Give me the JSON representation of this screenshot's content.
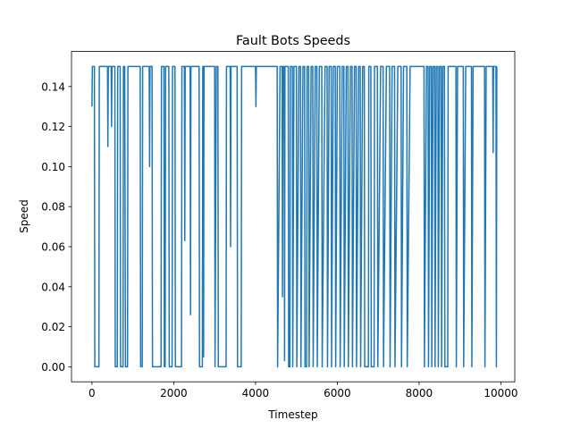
{
  "chart_data": {
    "type": "line",
    "title": "Fault Bots Speeds",
    "x_label": "Timestep",
    "y_label": "Speed",
    "color": "#1f77b4",
    "xlim": [
      -500,
      10340
    ],
    "ylim": [
      -0.0075,
      0.1575
    ],
    "xticks": [
      0,
      2000,
      4000,
      6000,
      8000,
      10000
    ],
    "yticks": [
      {
        "value": 0,
        "label": "0.00"
      },
      0.02,
      0.04,
      0.06,
      0.08,
      {
        "value": 0.1,
        "label": "0.10"
      },
      0.12,
      0.14
    ],
    "x": [
      0,
      10,
      60,
      70,
      170,
      180,
      380,
      390,
      400,
      470,
      480,
      490,
      560,
      570,
      620,
      630,
      690,
      700,
      760,
      770,
      800,
      810,
      820,
      870,
      880,
      1180,
      1190,
      1230,
      1240,
      1400,
      1410,
      1420,
      1470,
      1480,
      1690,
      1700,
      1760,
      1770,
      1790,
      1800,
      1880,
      1890,
      1960,
      1970,
      2030,
      2040,
      2190,
      2200,
      2260,
      2270,
      2280,
      2400,
      2410,
      2420,
      2620,
      2630,
      2700,
      2710,
      2720,
      2730,
      2740,
      3000,
      3010,
      3040,
      3080,
      3090,
      3280,
      3290,
      3380,
      3390,
      3400,
      3550,
      3560,
      3650,
      3660,
      4000,
      4010,
      4020,
      4530,
      4540,
      4600,
      4650,
      4660,
      4670,
      4700,
      4710,
      4720,
      4800,
      4810,
      4840,
      4850,
      4900,
      4910,
      4940,
      5000,
      5010,
      5060,
      5100,
      5110,
      5160,
      5200,
      5210,
      5250,
      5260,
      5300,
      5310,
      5360,
      5400,
      5410,
      5460,
      5500,
      5510,
      5560,
      5620,
      5630,
      5700,
      5750,
      5760,
      5800,
      5850,
      5860,
      5900,
      5950,
      5960,
      6000,
      6060,
      6070,
      6120,
      6160,
      6170,
      6220,
      6260,
      6270,
      6320,
      6360,
      6370,
      6420,
      6460,
      6470,
      6520,
      6560,
      6570,
      6620,
      6660,
      6670,
      6760,
      6770,
      6820,
      6830,
      6900,
      6910,
      6980,
      6990,
      7060,
      7120,
      7130,
      7200,
      7280,
      7290,
      7340,
      7400,
      7410,
      7480,
      7560,
      7570,
      7620,
      7700,
      7710,
      7780,
      8120,
      8130,
      8180,
      8220,
      8230,
      8260,
      8300,
      8310,
      8340,
      8380,
      8390,
      8420,
      8460,
      8470,
      8500,
      8540,
      8550,
      8580,
      8620,
      8630,
      8700,
      8710,
      8900,
      8910,
      8940,
      9080,
      9090,
      9140,
      9280,
      9290,
      9320,
      9600,
      9610,
      9640,
      9800,
      9810,
      9820,
      9880,
      9890,
      9900
    ],
    "values": [
      0.13,
      0.15,
      0.15,
      0,
      0,
      0.15,
      0.15,
      0.11,
      0.15,
      0.15,
      0.12,
      0.15,
      0.15,
      0,
      0,
      0.15,
      0.15,
      0,
      0,
      0.15,
      0.15,
      0.08,
      0,
      0,
      0.15,
      0.15,
      0,
      0,
      0.15,
      0.15,
      0.1,
      0.15,
      0.15,
      0,
      0,
      0.15,
      0.15,
      0,
      0,
      0.15,
      0.15,
      0,
      0,
      0.15,
      0.15,
      0,
      0,
      0.15,
      0.15,
      0.063,
      0.15,
      0.15,
      0.026,
      0.15,
      0.15,
      0,
      0,
      0.15,
      0.15,
      0.005,
      0.15,
      0.15,
      0,
      0.15,
      0.15,
      0,
      0,
      0.15,
      0.15,
      0.06,
      0.15,
      0.15,
      0,
      0,
      0.15,
      0.15,
      0.13,
      0.15,
      0.15,
      0,
      0.15,
      0.15,
      0.035,
      0.15,
      0.15,
      0.003,
      0.15,
      0.15,
      0,
      0,
      0.15,
      0.15,
      0,
      0.15,
      0.15,
      0,
      0.15,
      0.15,
      0,
      0.15,
      0.15,
      0,
      0,
      0.15,
      0.15,
      0,
      0.15,
      0.15,
      0,
      0.15,
      0.15,
      0,
      0.15,
      0.15,
      0,
      0.15,
      0.15,
      0,
      0.15,
      0.15,
      0,
      0.15,
      0.15,
      0,
      0.15,
      0.15,
      0,
      0.15,
      0.15,
      0,
      0.15,
      0.15,
      0,
      0.15,
      0.15,
      0,
      0.15,
      0.15,
      0,
      0.15,
      0.15,
      0,
      0.15,
      0.15,
      0,
      0,
      0.15,
      0.15,
      0,
      0,
      0.15,
      0.15,
      0,
      0.15,
      0.15,
      0,
      0.15,
      0.15,
      0,
      0.15,
      0.15,
      0,
      0.15,
      0.15,
      0,
      0.15,
      0.15,
      0,
      0.15,
      0.15,
      0,
      0.15,
      0.15,
      0,
      0.15,
      0.15,
      0,
      0.15,
      0.15,
      0,
      0.15,
      0.15,
      0,
      0.15,
      0.15,
      0,
      0.15,
      0.15,
      0,
      0,
      0.15,
      0.15,
      0,
      0.15,
      0.15,
      0,
      0.15,
      0.15,
      0,
      0.15,
      0.15,
      0,
      0.15,
      0.15,
      0.107,
      0.15,
      0.15,
      0,
      0.15
    ]
  }
}
